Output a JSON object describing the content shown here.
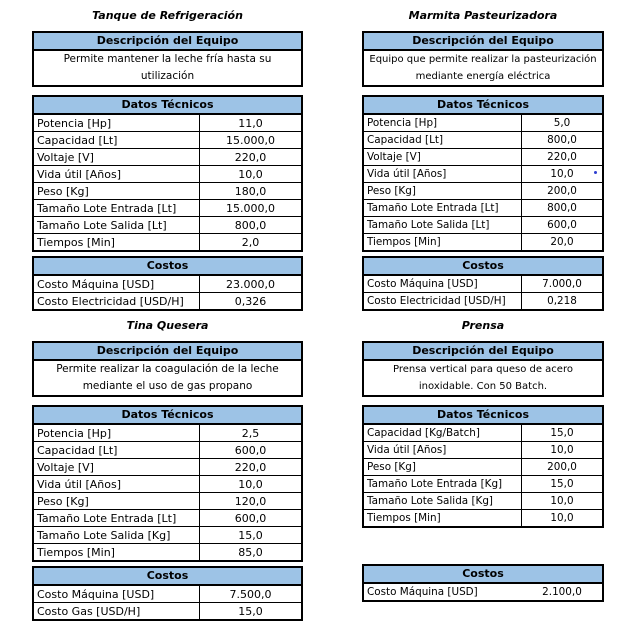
{
  "colors": {
    "section_header_bg": "#9DC3E6",
    "table_border": "#000000",
    "page_background": "#FFFFFF",
    "text": "#000000",
    "stray_mark": "#2E3FD0"
  },
  "section_labels": {
    "description": "Descripción del Equipo",
    "technical": "Datos Técnicos",
    "costs": "Costos"
  },
  "tables": [
    {
      "title": "Tanque de Refrigeración",
      "description": "Permite mantener la leche fría hasta su utilización",
      "technical_rows": [
        {
          "label": "Potencia [Hp]",
          "value": "11,0"
        },
        {
          "label": "Capacidad [Lt]",
          "value": "15.000,0"
        },
        {
          "label": "Voltaje [V]",
          "value": "220,0"
        },
        {
          "label": "Vida útil [Años]",
          "value": "10,0"
        },
        {
          "label": "Peso [Kg]",
          "value": "180,0"
        },
        {
          "label": "Tamaño Lote Entrada [Lt]",
          "value": "15.000,0"
        },
        {
          "label": "Tamaño Lote Salida [Lt]",
          "value": "800,0"
        },
        {
          "label": "Tiempos [Min]",
          "value": "2,0"
        }
      ],
      "cost_rows": [
        {
          "label": "Costo Máquina [USD]",
          "value": "23.000,0"
        },
        {
          "label": "Costo Electricidad [USD/H]",
          "value": "0,326"
        }
      ]
    },
    {
      "title": "Marmita Pasteurizadora",
      "description": "Equipo que permite realizar la pasteurización mediante energía eléctrica",
      "technical_rows": [
        {
          "label": "Potencia [Hp]",
          "value": "5,0"
        },
        {
          "label": "Capacidad [Lt]",
          "value": "800,0"
        },
        {
          "label": "Voltaje [V]",
          "value": "220,0"
        },
        {
          "label": "Vida útil [Años]",
          "value": "10,0"
        },
        {
          "label": "Peso [Kg]",
          "value": "200,0"
        },
        {
          "label": "Tamaño Lote Entrada [Lt]",
          "value": "800,0"
        },
        {
          "label": "Tamaño Lote Salida [Lt]",
          "value": "600,0"
        },
        {
          "label": "Tiempos [Min]",
          "value": "20,0"
        }
      ],
      "cost_rows": [
        {
          "label": "Costo Máquina [USD]",
          "value": "7.000,0"
        },
        {
          "label": "Costo Electricidad [USD/H]",
          "value": "0,218"
        }
      ]
    },
    {
      "title": "Tina Quesera",
      "description": "Permite realizar la coagulación de la leche mediante el uso de gas propano",
      "technical_rows": [
        {
          "label": "Potencia [Hp]",
          "value": "2,5"
        },
        {
          "label": "Capacidad [Lt]",
          "value": "600,0"
        },
        {
          "label": "Voltaje [V]",
          "value": "220,0"
        },
        {
          "label": "Vida útil [Años]",
          "value": "10,0"
        },
        {
          "label": "Peso [Kg]",
          "value": "120,0"
        },
        {
          "label": "Tamaño Lote Entrada [Lt]",
          "value": "600,0"
        },
        {
          "label": "Tamaño Lote Salida [Kg]",
          "value": "15,0"
        },
        {
          "label": "Tiempos [Min]",
          "value": "85,0"
        }
      ],
      "cost_rows": [
        {
          "label": "Costo Máquina [USD]",
          "value": "7.500,0"
        },
        {
          "label": "Costo Gas [USD/H]",
          "value": "15,0"
        }
      ]
    },
    {
      "title": "Prensa",
      "description": "Prensa vertical para queso de acero inoxidable. Con 50 Batch.",
      "technical_rows": [
        {
          "label": "Capacidad [Kg/Batch]",
          "value": "15,0"
        },
        {
          "label": "Vida útil [Años]",
          "value": "10,0"
        },
        {
          "label": "Peso [Kg]",
          "value": "200,0"
        },
        {
          "label": "Tamaño Lote Entrada [Kg]",
          "value": "15,0"
        },
        {
          "label": "Tamaño Lote Salida [Kg]",
          "value": "10,0"
        },
        {
          "label": "Tiempos [Min]",
          "value": "10,0"
        }
      ],
      "cost_rows": [
        {
          "label": "Costo Máquina [USD]",
          "value": "2.100,0",
          "divider": false
        }
      ]
    }
  ]
}
